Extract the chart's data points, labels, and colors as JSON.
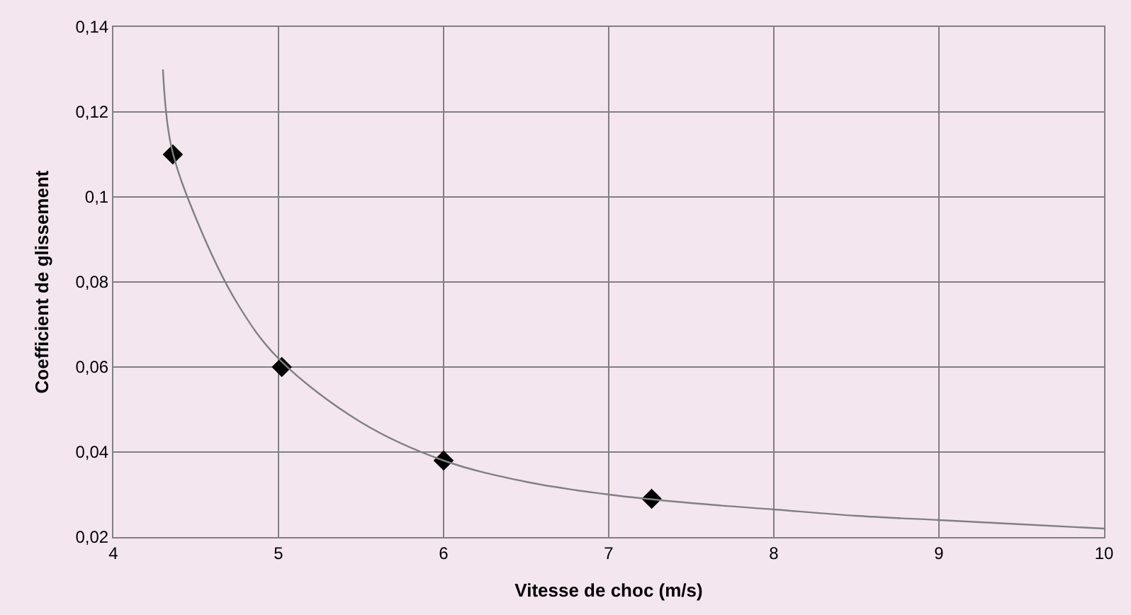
{
  "chart_data": {
    "type": "scatter",
    "xlabel": "Vitesse de choc (m/s)",
    "ylabel": "Coefficient de glissement",
    "xlim": [
      4,
      10
    ],
    "xticks": [
      4,
      5,
      6,
      7,
      8,
      9,
      10
    ],
    "ylim": [
      0.02,
      0.14
    ],
    "yticks": [
      {
        "value": 0.02,
        "label": "0,02"
      },
      {
        "value": 0.04,
        "label": "0,04"
      },
      {
        "value": 0.06,
        "label": "0,06"
      },
      {
        "value": 0.08,
        "label": "0,08"
      },
      {
        "value": 0.1,
        "label": "0,1"
      },
      {
        "value": 0.12,
        "label": "0,12"
      },
      {
        "value": 0.14,
        "label": "0,14"
      }
    ],
    "grid": true,
    "marker": "diamond",
    "series": [
      {
        "color": "#000000",
        "x": [
          4.36,
          5.02,
          6.0,
          7.26
        ],
        "values": [
          0.11,
          0.06,
          0.038,
          0.029
        ]
      },
      {
        "type": "line",
        "color": "#808080",
        "marker": "none",
        "line_style": "solid",
        "x": [
          4.3,
          4.35,
          4.5,
          4.75,
          5.0,
          5.5,
          6.0,
          6.5,
          7.0,
          7.5,
          8.0,
          8.5,
          9.0,
          9.5,
          10.0
        ],
        "values": [
          0.13,
          0.112,
          0.095,
          0.075,
          0.062,
          0.047,
          0.038,
          0.033,
          0.03,
          0.028,
          0.0265,
          0.025,
          0.024,
          0.023,
          0.022
        ]
      }
    ]
  }
}
